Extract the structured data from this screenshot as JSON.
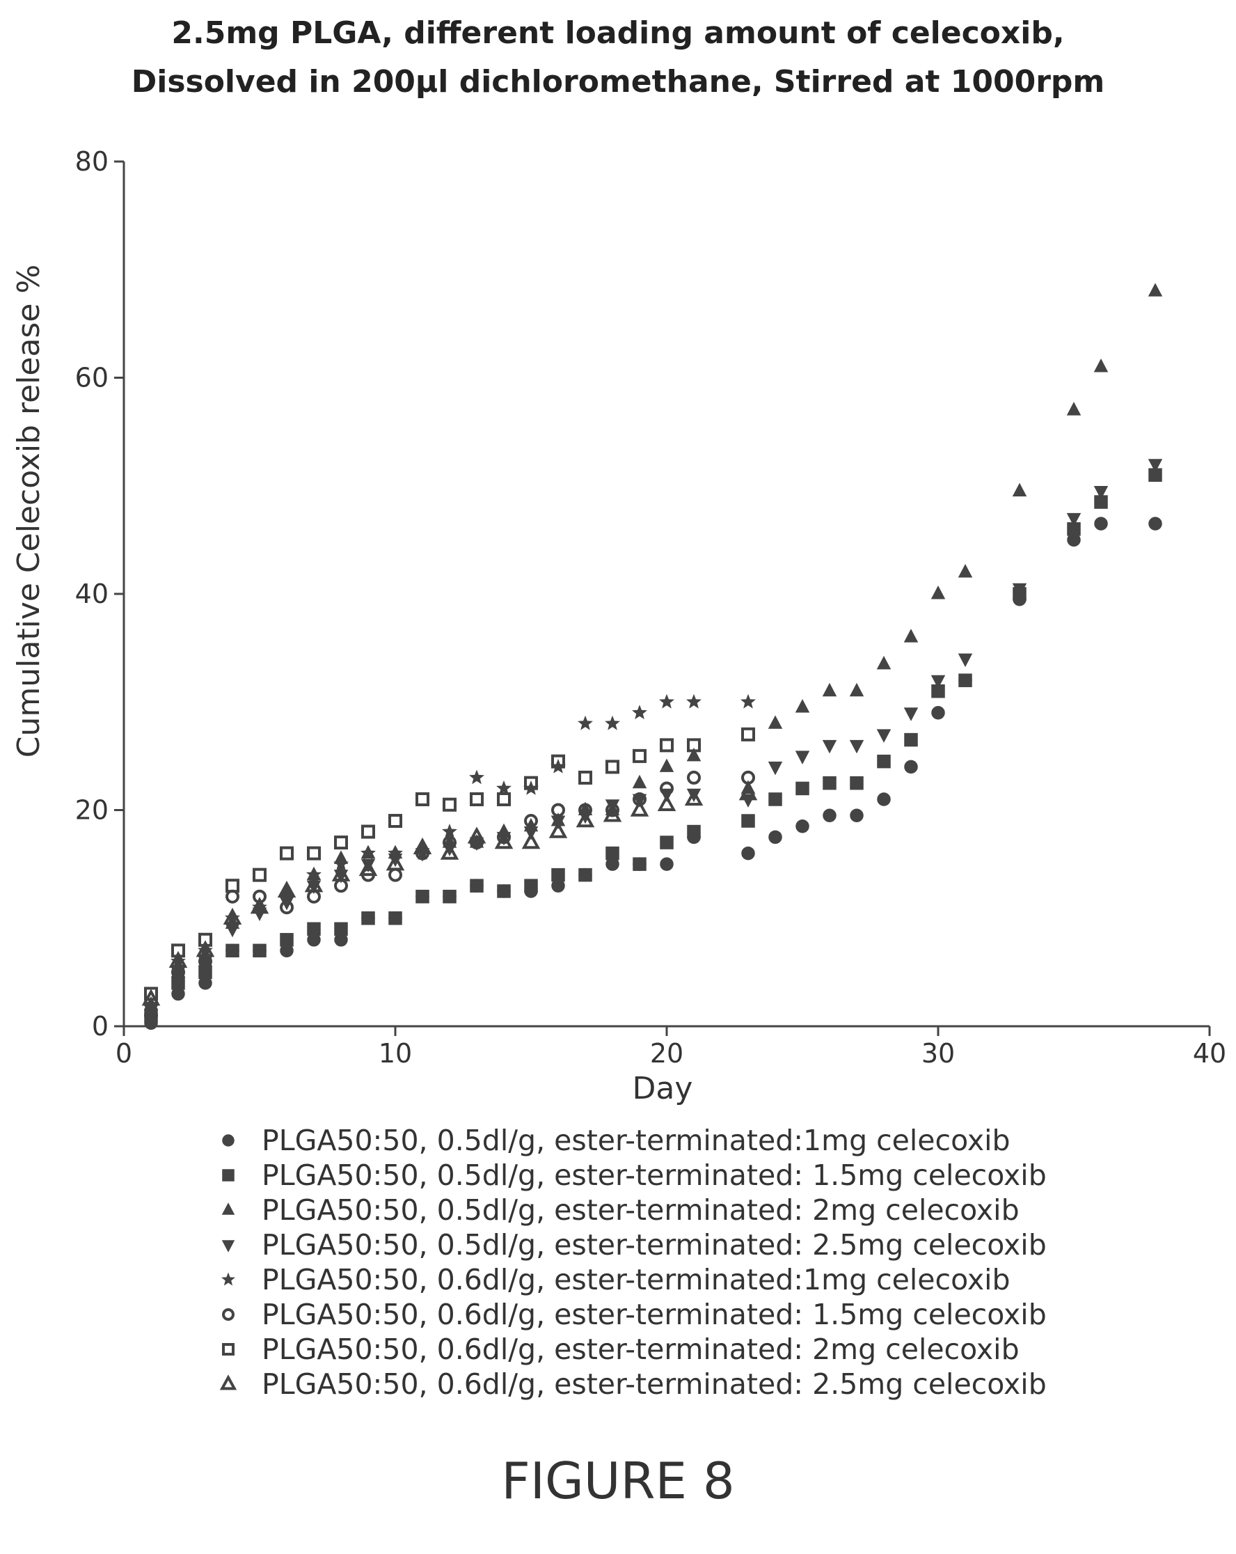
{
  "chart_data": {
    "type": "scatter",
    "title": [
      "2.5mg PLGA, different loading amount of celecoxib,",
      "Dissolved in 200µl dichloromethane, Stirred at 1000rpm"
    ],
    "xlabel": "Day",
    "ylabel": "Cumulative Celecoxib release %",
    "xlim": [
      0,
      40
    ],
    "ylim": [
      0,
      80
    ],
    "xticks": [
      "0",
      "10",
      "20",
      "30",
      "40"
    ],
    "yticks": [
      "0",
      "20",
      "40",
      "60",
      "80"
    ],
    "grid": false,
    "legend_position": "bottom",
    "series": [
      {
        "name": "PLGA50:50, 0.5dl/g, ester-terminated:1mg celecoxib",
        "marker": "circle",
        "x": [
          1,
          2,
          3,
          4,
          5,
          6,
          7,
          8,
          9,
          10,
          11,
          12,
          13,
          14,
          15,
          16,
          17,
          18,
          19,
          20,
          21,
          23,
          24,
          25,
          26,
          27,
          28,
          29,
          30,
          31,
          33,
          35,
          36,
          38
        ],
        "y": [
          0.3,
          3,
          4,
          7,
          7,
          7,
          8,
          8,
          10,
          10,
          12,
          12,
          13,
          12.5,
          12.5,
          13,
          14,
          15,
          15,
          15,
          17.5,
          16,
          17.5,
          18.5,
          19.5,
          19.5,
          21,
          24,
          29,
          32,
          39.5,
          45,
          46.5,
          46.5
        ]
      },
      {
        "name": "PLGA50:50, 0.5dl/g, ester-terminated: 1.5mg celecoxib",
        "marker": "square",
        "x": [
          1,
          2,
          3,
          4,
          5,
          6,
          7,
          8,
          9,
          10,
          11,
          12,
          13,
          14,
          15,
          16,
          17,
          18,
          19,
          20,
          21,
          23,
          24,
          25,
          26,
          27,
          28,
          29,
          30,
          31,
          33,
          35,
          36,
          38
        ],
        "y": [
          1,
          4,
          5,
          7,
          7,
          8,
          9,
          9,
          10,
          10,
          12,
          12,
          13,
          12.5,
          13,
          14,
          14,
          16,
          15,
          17,
          18,
          19,
          21,
          22,
          22.5,
          22.5,
          24.5,
          26.5,
          31,
          32,
          40,
          46,
          48.5,
          51
        ]
      },
      {
        "name": "PLGA50:50, 0.5dl/g, ester-terminated: 2mg celecoxib",
        "marker": "triangle-up",
        "x": [
          1,
          2,
          3,
          4,
          5,
          6,
          7,
          8,
          9,
          10,
          11,
          12,
          13,
          14,
          15,
          16,
          17,
          18,
          19,
          20,
          21,
          23,
          24,
          25,
          26,
          27,
          28,
          29,
          30,
          31,
          33,
          35,
          36,
          38
        ],
        "y": [
          2,
          5,
          6,
          9.5,
          11,
          12.5,
          14,
          15.5,
          16,
          16,
          16.5,
          17,
          17,
          18,
          18.5,
          19,
          20,
          20,
          22.5,
          24,
          25,
          22,
          28,
          29.5,
          31,
          31,
          33.5,
          36,
          40,
          42,
          49.5,
          57,
          61,
          68
        ]
      },
      {
        "name": "PLGA50:50, 0.5dl/g, ester-terminated: 2.5mg celecoxib",
        "marker": "triangle-down",
        "x": [
          1,
          2,
          3,
          4,
          5,
          6,
          7,
          8,
          9,
          10,
          11,
          12,
          13,
          14,
          15,
          16,
          17,
          18,
          19,
          20,
          21,
          23,
          24,
          25,
          26,
          27,
          28,
          29,
          30,
          31,
          33,
          35,
          36,
          38
        ],
        "y": [
          1.5,
          5,
          6,
          9,
          10.5,
          11.5,
          13,
          14,
          15,
          15.5,
          16,
          16.5,
          17,
          17.5,
          18,
          19,
          19.5,
          20.5,
          21,
          21.5,
          21.5,
          21,
          24,
          25,
          26,
          26,
          27,
          29,
          32,
          34,
          40.5,
          47,
          49.5,
          52
        ]
      },
      {
        "name": "PLGA50:50, 0.6dl/g, ester-terminated:1mg celecoxib",
        "marker": "star",
        "x": [
          1,
          2,
          3,
          4,
          5,
          6,
          7,
          8,
          9,
          10,
          11,
          12,
          13,
          14,
          15,
          16,
          17,
          18,
          19,
          20,
          21,
          23
        ],
        "y": [
          2,
          6,
          7,
          10,
          11,
          12,
          14,
          15,
          16,
          16,
          16,
          18,
          23,
          22,
          22,
          24,
          28,
          28,
          29,
          30,
          30,
          30
        ]
      },
      {
        "name": "PLGA50:50, 0.6dl/g, ester-terminated: 1.5mg celecoxib",
        "marker": "circle-open",
        "x": [
          1,
          2,
          3,
          4,
          5,
          6,
          7,
          8,
          9,
          10,
          11,
          12,
          13,
          14,
          15,
          16,
          17,
          18,
          19,
          20,
          21,
          23
        ],
        "y": [
          1,
          5,
          6,
          12,
          12,
          11,
          12,
          13,
          14,
          14,
          16,
          17,
          17,
          17.5,
          19,
          20,
          20,
          20,
          21,
          22,
          23,
          23
        ]
      },
      {
        "name": "PLGA50:50, 0.6dl/g, ester-terminated: 2mg celecoxib",
        "marker": "square-open",
        "x": [
          1,
          2,
          3,
          4,
          5,
          6,
          7,
          8,
          9,
          10,
          11,
          12,
          13,
          14,
          15,
          16,
          17,
          18,
          19,
          20,
          21,
          23
        ],
        "y": [
          3,
          7,
          8,
          13,
          14,
          16,
          16,
          17,
          18,
          19,
          21,
          20.5,
          21,
          21,
          22.5,
          24.5,
          23,
          24,
          25,
          26,
          26,
          27
        ]
      },
      {
        "name": "PLGA50:50, 0.6dl/g, ester-terminated: 2.5mg celecoxib",
        "marker": "triangle-open",
        "x": [
          1,
          2,
          3,
          4,
          5,
          6,
          7,
          8,
          9,
          10,
          11,
          12,
          13,
          14,
          15,
          16,
          17,
          18,
          19,
          20,
          21,
          23
        ],
        "y": [
          2.5,
          6,
          7,
          10,
          11,
          12.5,
          13,
          14,
          14.5,
          15,
          16.5,
          16,
          17.5,
          17,
          17,
          18,
          19,
          19.5,
          20,
          20.5,
          21,
          21.5
        ]
      }
    ]
  },
  "figure_label": "FIGURE 8"
}
